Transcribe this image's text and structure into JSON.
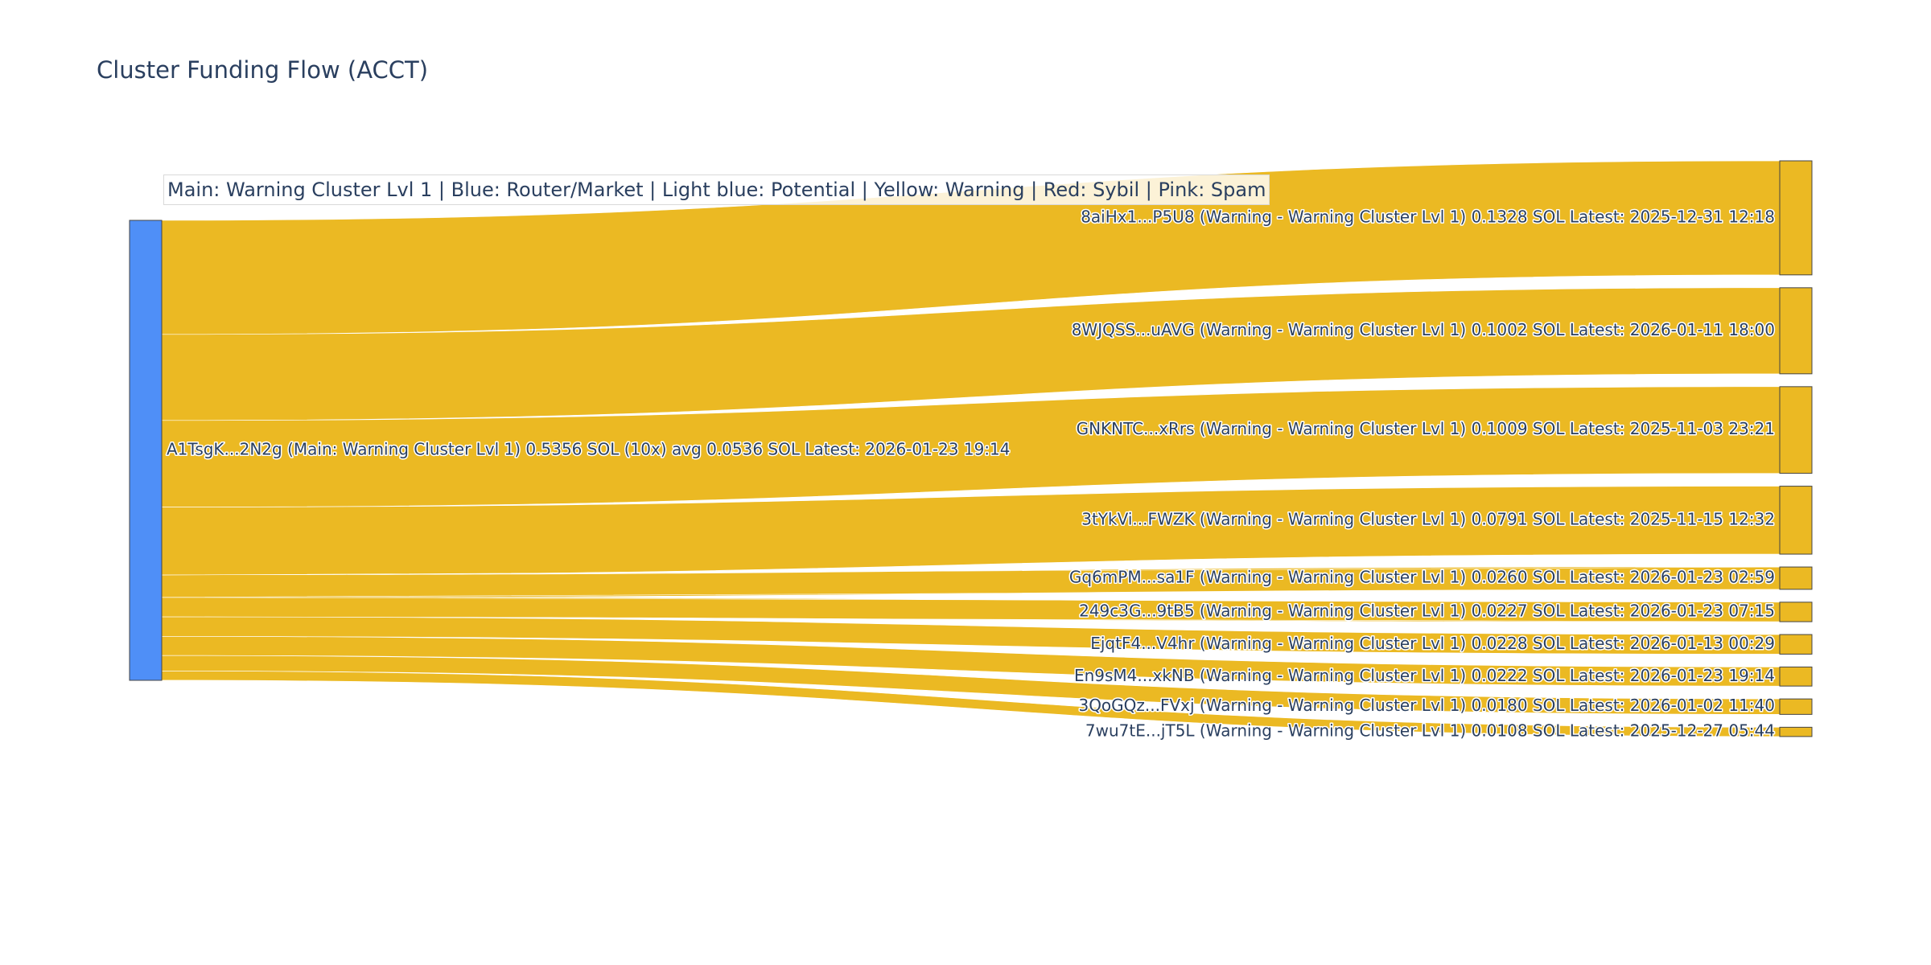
{
  "chart_data": {
    "type": "sankey",
    "title": "Cluster Funding Flow (ACCT)",
    "annotation": "Main: Warning Cluster Lvl 1  |  Blue: Router/Market | Light blue: Potential | Yellow: Warning | Red: Sybil | Pink: Spam",
    "source": {
      "label": "A1TsgK...2N2g (Main: Warning Cluster Lvl 1) 0.5356 SOL (10x) avg 0.0536 SOL Latest: 2026-01-23 19:14",
      "value": 0.5356,
      "color": "#4f8ff7"
    },
    "link_color": "#ebb923",
    "target_color": "#ebb923",
    "targets": [
      {
        "label": "8aiHx1...P5U8 (Warning - Warning Cluster Lvl 1) 0.1328 SOL Latest: 2025-12-31 12:18",
        "value": 0.1328
      },
      {
        "label": "8WJQSS...uAVG (Warning - Warning Cluster Lvl 1) 0.1002 SOL Latest: 2026-01-11 18:00",
        "value": 0.1002
      },
      {
        "label": "GNKNTC...xRrs (Warning - Warning Cluster Lvl 1) 0.1009 SOL Latest: 2025-11-03 23:21",
        "value": 0.1009
      },
      {
        "label": "3tYkVi...FWZK (Warning - Warning Cluster Lvl 1) 0.0791 SOL Latest: 2025-11-15 12:32",
        "value": 0.0791
      },
      {
        "label": "Gq6mPM...sa1F (Warning - Warning Cluster Lvl 1) 0.0260 SOL Latest: 2026-01-23 02:59",
        "value": 0.026
      },
      {
        "label": "249c3G...9tB5 (Warning - Warning Cluster Lvl 1) 0.0227 SOL Latest: 2026-01-23 07:15",
        "value": 0.0227
      },
      {
        "label": "EjqtF4...V4hr (Warning - Warning Cluster Lvl 1) 0.0228 SOL Latest: 2026-01-13 00:29",
        "value": 0.0228
      },
      {
        "label": "En9sM4...xkNB (Warning - Warning Cluster Lvl 1) 0.0222 SOL Latest: 2026-01-23 19:14",
        "value": 0.0222
      },
      {
        "label": "3QoGQz...FVxj (Warning - Warning Cluster Lvl 1) 0.0180 SOL Latest: 2026-01-02 11:40",
        "value": 0.018
      },
      {
        "label": "7wu7tE...jT5L (Warning - Warning Cluster Lvl 1) 0.0108 SOL Latest: 2025-12-27 05:44",
        "value": 0.0108
      }
    ]
  }
}
